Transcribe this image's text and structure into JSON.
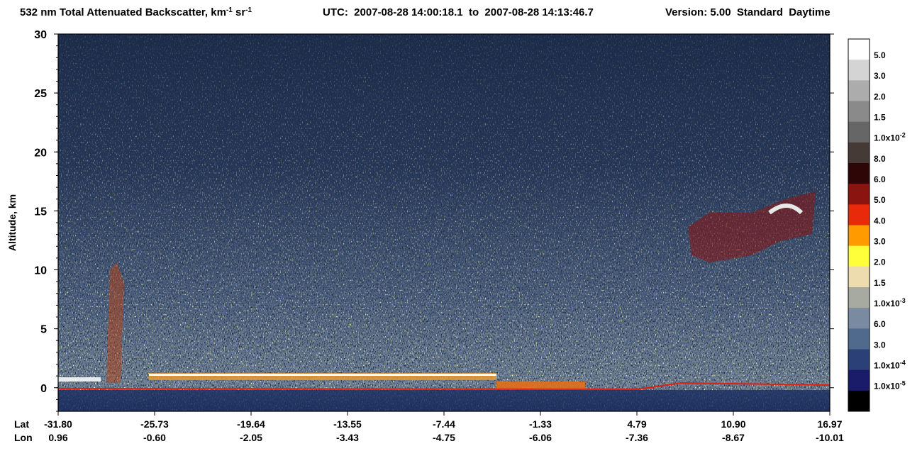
{
  "chart_data": {
    "type": "curtain",
    "title_parts": [
      "532 nm Total Attenuated Backscatter, km",
      "-1",
      " sr",
      "-1"
    ],
    "title_utc": "UTC:  2007-08-28 14:00:18.1  to  2007-08-28 14:13:46.7",
    "title_version": "Version: 5.00  Standard  Daytime",
    "ylabel": "Altitude, km",
    "ylim": [
      -2,
      30
    ],
    "yticks": [
      0,
      5,
      10,
      15,
      20,
      25,
      30
    ],
    "x_row_labels": [
      "Lat",
      "Lon"
    ],
    "lat": [
      "-31.80",
      "-25.73",
      "-19.64",
      "-13.55",
      "-7.44",
      "-1.33",
      "4.79",
      "10.90",
      "16.97"
    ],
    "lon": [
      "0.96",
      "-0.60",
      "-2.05",
      "-3.43",
      "-4.75",
      "-6.06",
      "-7.36",
      "-8.67",
      "-10.01"
    ],
    "colorbar": {
      "colors": [
        "#ffffff",
        "#d4d4d4",
        "#acacac",
        "#8a8a8a",
        "#666666",
        "#463a36",
        "#2e0606",
        "#8a1410",
        "#e82a0a",
        "#ff9a00",
        "#ffff3a",
        "#ecdcae",
        "#a6aaa0",
        "#7a8aa0",
        "#506a8e",
        "#2c4078",
        "#1a1c6a",
        "#000000"
      ],
      "labels": [
        {
          "text": "5.0"
        },
        {
          "text": "3.0"
        },
        {
          "text": "2.0"
        },
        {
          "text": "1.5"
        },
        {
          "text": "1.0x10",
          "sup": "-2"
        },
        {
          "text": "8.0"
        },
        {
          "text": "6.0"
        },
        {
          "text": "5.0"
        },
        {
          "text": "4.0"
        },
        {
          "text": "3.0"
        },
        {
          "text": "2.0"
        },
        {
          "text": "1.5"
        },
        {
          "text": "1.0x10",
          "sup": "-3"
        },
        {
          "text": "6.0"
        },
        {
          "text": "3.0"
        },
        {
          "text": "1.0x10",
          "sup": "-4"
        },
        {
          "text": "1.0x10",
          "sup": "-5"
        },
        null
      ]
    }
  }
}
